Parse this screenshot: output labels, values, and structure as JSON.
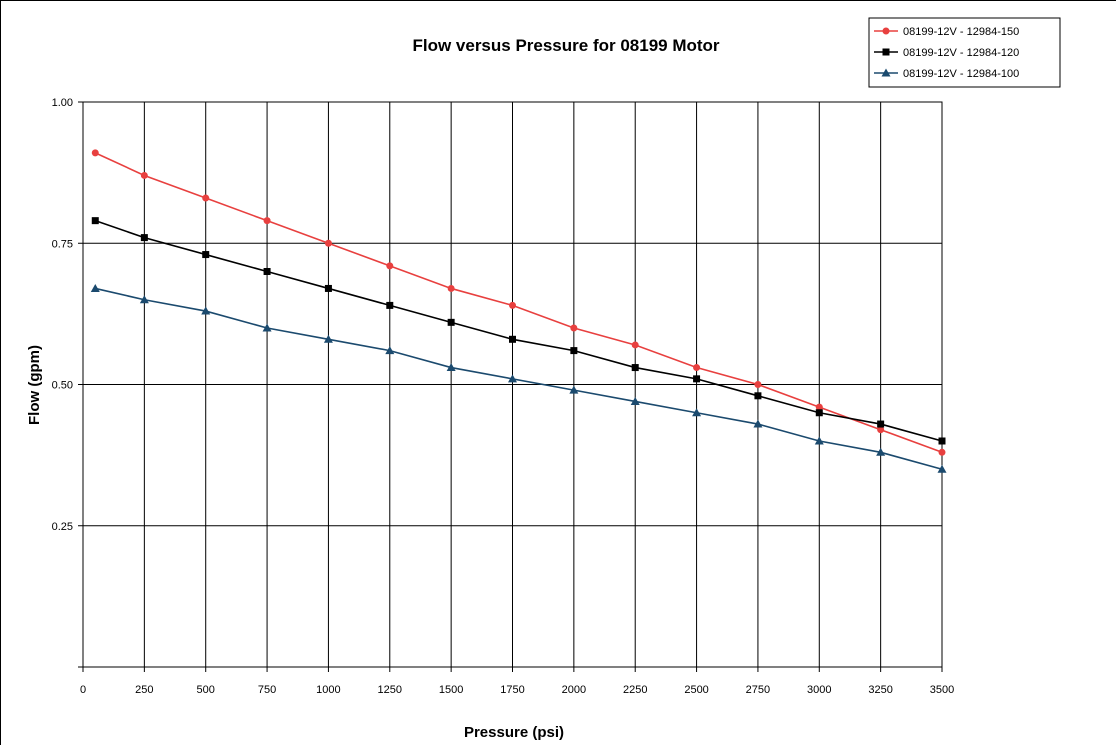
{
  "chart_data": {
    "type": "line",
    "title": "Flow versus Pressure for 08199 Motor",
    "xlabel": "Pressure (psi)",
    "ylabel": "Flow (gpm)",
    "xlim": [
      0,
      3500
    ],
    "ylim": [
      0,
      1.0
    ],
    "x_ticks": [
      0,
      250,
      500,
      750,
      1000,
      1250,
      1500,
      1750,
      2000,
      2250,
      2500,
      2750,
      3000,
      3250,
      3500
    ],
    "x_tick_labels": [
      "0",
      "250",
      "500",
      "750",
      "1000",
      "1250",
      "1500",
      "1750",
      "2000",
      "2250",
      "2500",
      "2750",
      "3000",
      "3250",
      "3500"
    ],
    "y_ticks": [
      0,
      0.25,
      0.5,
      0.75,
      1.0
    ],
    "y_tick_labels": [
      "",
      "0.25",
      "0.50",
      "0.75",
      "1.00"
    ],
    "grid": true,
    "legend_position": "top-right",
    "x": [
      50,
      250,
      500,
      750,
      1000,
      1250,
      1500,
      1750,
      2000,
      2250,
      2500,
      2750,
      3000,
      3250,
      3500
    ],
    "series": [
      {
        "name": "08199-12V - 12984-150",
        "color": "#e8403f",
        "marker": "circle",
        "values": [
          0.91,
          0.87,
          0.83,
          0.79,
          0.75,
          0.71,
          0.67,
          0.64,
          0.6,
          0.57,
          0.53,
          0.5,
          0.46,
          0.42,
          0.38
        ]
      },
      {
        "name": "08199-12V - 12984-120",
        "color": "#000000",
        "marker": "square",
        "values": [
          0.79,
          0.76,
          0.73,
          0.7,
          0.67,
          0.64,
          0.61,
          0.58,
          0.56,
          0.53,
          0.51,
          0.48,
          0.45,
          0.43,
          0.4
        ]
      },
      {
        "name": "08199-12V - 12984-100",
        "color": "#1b4a6e",
        "marker": "triangle",
        "values": [
          0.67,
          0.65,
          0.63,
          0.6,
          0.58,
          0.56,
          0.53,
          0.51,
          0.49,
          0.47,
          0.45,
          0.43,
          0.4,
          0.38,
          0.35
        ]
      }
    ]
  }
}
